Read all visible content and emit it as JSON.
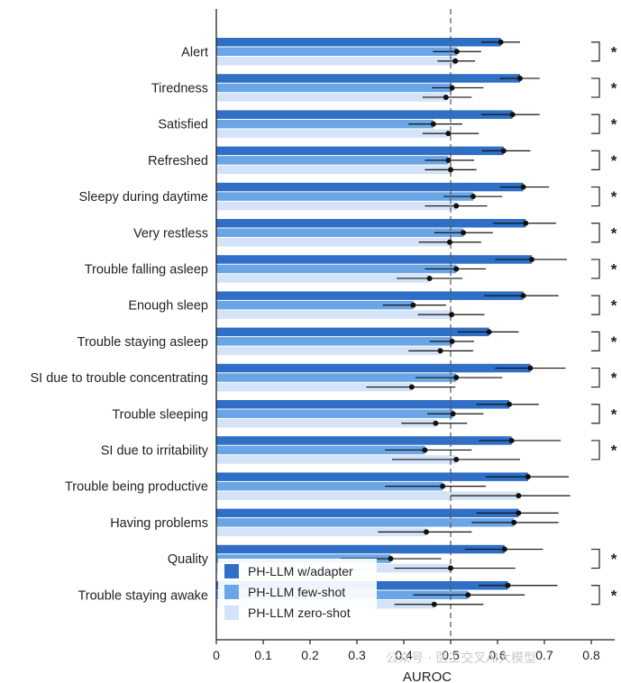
{
  "chart_data": {
    "type": "bar",
    "orientation": "horizontal",
    "xlabel": "AUROC",
    "xlim": [
      0,
      0.85
    ],
    "xticks": [
      0,
      0.1,
      0.2,
      0.3,
      0.4,
      0.5,
      0.6,
      0.7,
      0.8
    ],
    "xtick_labels": [
      "0",
      "0.1",
      "0.2",
      "0.3",
      "0.4",
      "0.5",
      "0.6",
      "0.7",
      "0.8"
    ],
    "reference_line": 0.5,
    "categories": [
      "Alert",
      "Tiredness",
      "Satisfied",
      "Refreshed",
      "Sleepy during daytime",
      "Very restless",
      "Trouble falling asleep",
      "Enough sleep",
      "Trouble staying asleep",
      "SI due to trouble concentrating",
      "Trouble sleeping",
      "SI due to irritability",
      "Trouble being productive",
      "Having problems",
      "Quality",
      "Trouble staying awake"
    ],
    "significance": [
      "*",
      "*",
      "*",
      "*",
      "*",
      "*",
      "*",
      "*",
      "*",
      "*",
      "*",
      "*",
      "",
      "",
      "*",
      "*"
    ],
    "series": [
      {
        "name": "PH-LLM w/adapter",
        "color": "#2f6fc6",
        "values": [
          0.607,
          0.648,
          0.632,
          0.613,
          0.655,
          0.66,
          0.673,
          0.655,
          0.582,
          0.67,
          0.625,
          0.63,
          0.665,
          0.645,
          0.615,
          0.622
        ],
        "ci": [
          [
            0.565,
            0.648
          ],
          [
            0.605,
            0.69
          ],
          [
            0.565,
            0.69
          ],
          [
            0.567,
            0.67
          ],
          [
            0.605,
            0.71
          ],
          [
            0.59,
            0.725
          ],
          [
            0.595,
            0.748
          ],
          [
            0.572,
            0.73
          ],
          [
            0.515,
            0.645
          ],
          [
            0.595,
            0.745
          ],
          [
            0.555,
            0.688
          ],
          [
            0.56,
            0.735
          ],
          [
            0.575,
            0.752
          ],
          [
            0.555,
            0.73
          ],
          [
            0.53,
            0.697
          ],
          [
            0.56,
            0.728
          ]
        ]
      },
      {
        "name": "PH-LLM few-shot",
        "color": "#6aa6e6",
        "values": [
          0.513,
          0.503,
          0.463,
          0.495,
          0.548,
          0.527,
          0.512,
          0.42,
          0.503,
          0.512,
          0.505,
          0.445,
          0.483,
          0.635,
          0.372,
          0.537
        ],
        "ci": [
          [
            0.462,
            0.565
          ],
          [
            0.46,
            0.57
          ],
          [
            0.41,
            0.525
          ],
          [
            0.445,
            0.55
          ],
          [
            0.485,
            0.61
          ],
          [
            0.465,
            0.59
          ],
          [
            0.445,
            0.575
          ],
          [
            0.355,
            0.49
          ],
          [
            0.455,
            0.55
          ],
          [
            0.425,
            0.61
          ],
          [
            0.45,
            0.57
          ],
          [
            0.36,
            0.545
          ],
          [
            0.36,
            0.575
          ],
          [
            0.545,
            0.73
          ],
          [
            0.265,
            0.48
          ],
          [
            0.42,
            0.658
          ]
        ]
      },
      {
        "name": "PH-LLM zero-shot",
        "color": "#d4e3f7",
        "values": [
          0.51,
          0.49,
          0.495,
          0.5,
          0.512,
          0.498,
          0.455,
          0.502,
          0.478,
          0.417,
          0.468,
          0.512,
          0.645,
          0.448,
          0.5,
          0.465
        ],
        "ci": [
          [
            0.472,
            0.552
          ],
          [
            0.44,
            0.545
          ],
          [
            0.44,
            0.56
          ],
          [
            0.445,
            0.555
          ],
          [
            0.445,
            0.578
          ],
          [
            0.432,
            0.565
          ],
          [
            0.385,
            0.525
          ],
          [
            0.43,
            0.572
          ],
          [
            0.41,
            0.548
          ],
          [
            0.32,
            0.51
          ],
          [
            0.395,
            0.535
          ],
          [
            0.375,
            0.648
          ],
          [
            0.5,
            0.755
          ],
          [
            0.345,
            0.545
          ],
          [
            0.38,
            0.638
          ],
          [
            0.38,
            0.57
          ]
        ]
      }
    ],
    "legend": {
      "entries": [
        "PH-LLM w/adapter",
        "PH-LLM few-shot",
        "PH-LLM zero-shot"
      ],
      "placement": "bottom-left"
    },
    "grid": false,
    "watermark": "公众号 · 医工交叉AI大模型"
  }
}
